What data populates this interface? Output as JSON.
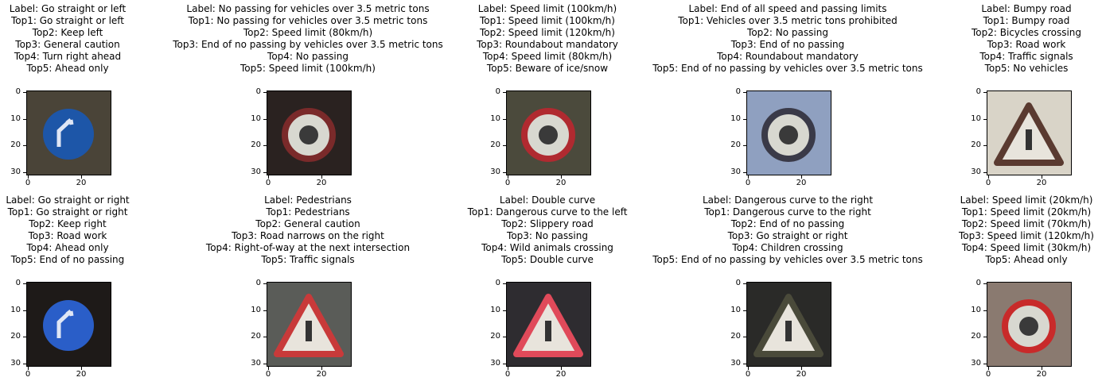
{
  "panels": [
    {
      "lines": [
        "Label: Go straight or left",
        "Top1: Go straight or left",
        "Top2: Keep left",
        "Top3: General caution",
        "Top4: Turn right ahead",
        "Top5: Ahead only"
      ],
      "bg": "#4a4438",
      "sign": "blue-circle",
      "sign_color": "#1d56a8"
    },
    {
      "lines": [
        "Label: No passing for vehicles over 3.5 metric tons",
        "Top1: No passing for vehicles over 3.5 metric tons",
        "Top2: Speed limit (80km/h)",
        "Top3: End of no passing by vehicles over 3.5 metric tons",
        "Top4: No passing",
        "Top5: Speed limit (100km/h)"
      ],
      "bg": "#2a2220",
      "sign": "red-ring",
      "sign_color": "#7a2a2a"
    },
    {
      "lines": [
        "Label: Speed limit (100km/h)",
        "Top1: Speed limit (100km/h)",
        "Top2: Speed limit (120km/h)",
        "Top3: Roundabout mandatory",
        "Top4: Speed limit (80km/h)",
        "Top5: Beware of ice/snow"
      ],
      "bg": "#4b4a3c",
      "sign": "red-ring",
      "sign_color": "#b02a30"
    },
    {
      "lines": [
        "Label: End of all speed and passing limits",
        "Top1: Vehicles over 3.5 metric tons prohibited",
        "Top2: No passing",
        "Top3: End of no passing",
        "Top4: Roundabout mandatory",
        "Top5: End of no passing by vehicles over 3.5 metric tons"
      ],
      "bg": "#8fa0c0",
      "sign": "red-ring",
      "sign_color": "#3a3a48"
    },
    {
      "lines": [
        "Label: Bumpy road",
        "Top1: Bumpy road",
        "Top2: Bicycles crossing",
        "Top3: Road work",
        "Top4: Traffic signals",
        "Top5: No vehicles"
      ],
      "bg": "#d9d4c8",
      "sign": "triangle",
      "sign_color": "#5a3a30"
    },
    {
      "lines": [
        "Label: Go straight or right",
        "Top1: Go straight or right",
        "Top2: Keep right",
        "Top3: Road work",
        "Top4: Ahead only",
        "Top5: End of no passing"
      ],
      "bg": "#1e1a18",
      "sign": "blue-circle",
      "sign_color": "#2a5ec8"
    },
    {
      "lines": [
        "Label: Pedestrians",
        "Top1: Pedestrians",
        "Top2: General caution",
        "Top3: Road narrows on the right",
        "Top4: Right-of-way at the next intersection",
        "Top5: Traffic signals"
      ],
      "bg": "#5a5c58",
      "sign": "triangle",
      "sign_color": "#c83a3a"
    },
    {
      "lines": [
        "Label: Double curve",
        "Top1: Dangerous curve to the left",
        "Top2: Slippery road",
        "Top3: No passing",
        "Top4: Wild animals crossing",
        "Top5: Double curve"
      ],
      "bg": "#2e2c30",
      "sign": "triangle",
      "sign_color": "#e04a5a"
    },
    {
      "lines": [
        "Label: Dangerous curve to the right",
        "Top1: Dangerous curve to the right",
        "Top2: End of no passing",
        "Top3: Go straight or right",
        "Top4: Children crossing",
        "Top5: End of no passing by vehicles over 3.5 metric tons"
      ],
      "bg": "#2a2a28",
      "sign": "triangle",
      "sign_color": "#4a4a3a"
    },
    {
      "lines": [
        "Label: Speed limit (20km/h)",
        "Top1: Speed limit (20km/h)",
        "Top2: Speed limit (70km/h)",
        "Top3: Speed limit (120km/h)",
        "Top4: Speed limit (30km/h)",
        "Top5: Ahead only"
      ],
      "bg": "#8a7a70",
      "sign": "red-ring",
      "sign_color": "#c82a2a"
    }
  ],
  "axis": {
    "y_ticks": [
      "0",
      "10",
      "20",
      "30"
    ],
    "x_ticks": [
      "0",
      "20"
    ]
  }
}
